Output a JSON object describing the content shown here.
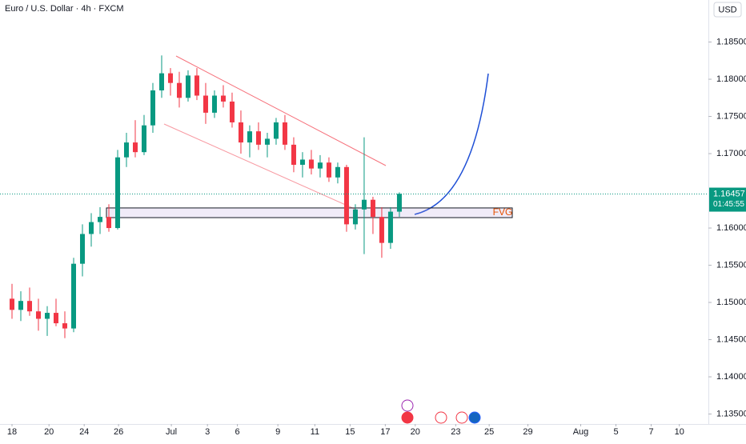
{
  "chart_data": {
    "type": "candlestick",
    "title": "Euro / U.S. Dollar · 4h · FXCM",
    "currency": "USD",
    "x": [
      0,
      0.5,
      1,
      1.5,
      2,
      2.5,
      3,
      3.5,
      4,
      4.5,
      5,
      5.5,
      6,
      6.5,
      7,
      7.5,
      8,
      8.5,
      9,
      9.5,
      10,
      10.5,
      11,
      11.5,
      12,
      12.5,
      13,
      13.5,
      14,
      14.5,
      15,
      15.5,
      16,
      16.5,
      17,
      17.5,
      18,
      18.5,
      19,
      19.5,
      20,
      20.5,
      21,
      21.5,
      22
    ],
    "open": [
      1.1505,
      1.149,
      1.1502,
      1.1488,
      1.1478,
      1.1486,
      1.1472,
      1.1465,
      1.1552,
      1.1592,
      1.1608,
      1.1615,
      1.16,
      1.1695,
      1.1715,
      1.1702,
      1.1738,
      1.1785,
      1.1808,
      1.1795,
      1.1775,
      1.1805,
      1.1778,
      1.1755,
      1.1778,
      1.177,
      1.1742,
      1.1715,
      1.173,
      1.1712,
      1.172,
      1.1742,
      1.1712,
      1.1685,
      1.1692,
      1.168,
      1.1688,
      1.1668,
      1.1682,
      1.1605,
      1.1625,
      1.1638,
      1.1615,
      1.158,
      1.1622
    ],
    "high": [
      1.1525,
      1.1515,
      1.152,
      1.1505,
      1.1495,
      1.1505,
      1.1488,
      1.156,
      1.1605,
      1.162,
      1.1628,
      1.1632,
      1.1705,
      1.1728,
      1.1745,
      1.1752,
      1.1795,
      1.1832,
      1.1815,
      1.181,
      1.1812,
      1.1815,
      1.1795,
      1.1785,
      1.1792,
      1.1782,
      1.1758,
      1.1738,
      1.1742,
      1.1728,
      1.1748,
      1.1752,
      1.1722,
      1.1702,
      1.1705,
      1.1698,
      1.1695,
      1.1688,
      1.1685,
      1.1632,
      1.1722,
      1.1642,
      1.1628,
      1.1628,
      1.1648
    ],
    "low": [
      1.1478,
      1.1475,
      1.1482,
      1.1462,
      1.1455,
      1.1468,
      1.1452,
      1.146,
      1.1535,
      1.1575,
      1.1592,
      1.1595,
      1.1598,
      1.1682,
      1.1695,
      1.1698,
      1.1728,
      1.1775,
      1.1778,
      1.1762,
      1.177,
      1.1772,
      1.174,
      1.1748,
      1.1762,
      1.1735,
      1.17,
      1.1695,
      1.1705,
      1.1695,
      1.1712,
      1.1705,
      1.1675,
      1.1668,
      1.1672,
      1.1668,
      1.1662,
      1.166,
      1.1595,
      1.1598,
      1.1565,
      1.1592,
      1.156,
      1.1572,
      1.1615
    ],
    "close": [
      1.149,
      1.1502,
      1.1488,
      1.1478,
      1.1486,
      1.1472,
      1.1465,
      1.1552,
      1.1592,
      1.1608,
      1.1615,
      1.16,
      1.1695,
      1.1715,
      1.1702,
      1.1738,
      1.1785,
      1.1808,
      1.1795,
      1.1775,
      1.1805,
      1.1778,
      1.1755,
      1.1778,
      1.177,
      1.1742,
      1.1715,
      1.173,
      1.1712,
      1.172,
      1.1742,
      1.1712,
      1.1685,
      1.1692,
      1.168,
      1.1688,
      1.1668,
      1.1682,
      1.1605,
      1.1625,
      1.1638,
      1.1615,
      1.158,
      1.1622,
      1.1646
    ],
    "up_color": "#089981",
    "down_color": "#f23645",
    "ylim": [
      1.13366,
      1.19065
    ],
    "yticks": [
      {
        "value": 1.135,
        "label": "1.13500"
      },
      {
        "value": 1.14,
        "label": "1.14000"
      },
      {
        "value": 1.145,
        "label": "1.14500"
      },
      {
        "value": 1.15,
        "label": "1.15000"
      },
      {
        "value": 1.155,
        "label": "1.15500"
      },
      {
        "value": 1.16,
        "label": "1.16000"
      },
      {
        "value": 1.17,
        "label": "1.17000"
      },
      {
        "value": 1.175,
        "label": "1.17500"
      },
      {
        "value": 1.18,
        "label": "1.18000"
      },
      {
        "value": 1.185,
        "label": "1.18500"
      }
    ],
    "xlim": [
      -0.682,
      39.55
    ],
    "xticks": [
      {
        "value": 0,
        "label": "18"
      },
      {
        "value": 2.1,
        "label": "20"
      },
      {
        "value": 4.1,
        "label": "24"
      },
      {
        "value": 6.05,
        "label": "26"
      },
      {
        "value": 9.05,
        "label": "Jul"
      },
      {
        "value": 11.1,
        "label": "3"
      },
      {
        "value": 12.8,
        "label": "6"
      },
      {
        "value": 15.1,
        "label": "9"
      },
      {
        "value": 17.2,
        "label": "11"
      },
      {
        "value": 19.2,
        "label": "15"
      },
      {
        "value": 21.2,
        "label": "17"
      },
      {
        "value": 22.9,
        "label": "20"
      },
      {
        "value": 25.2,
        "label": "23"
      },
      {
        "value": 27.1,
        "label": "25"
      },
      {
        "value": 29.3,
        "label": "29"
      },
      {
        "value": 32.3,
        "label": "Aug"
      },
      {
        "value": 34.3,
        "label": "5"
      },
      {
        "value": 36.3,
        "label": "7"
      },
      {
        "value": 37.9,
        "label": "10"
      }
    ],
    "last_price": {
      "value": 1.16457,
      "label": "1.16457",
      "countdown": "01:45:55",
      "color": "#089981"
    },
    "fvg": {
      "label": "FVG",
      "top": 1.1627,
      "bottom": 1.1614
    }
  }
}
